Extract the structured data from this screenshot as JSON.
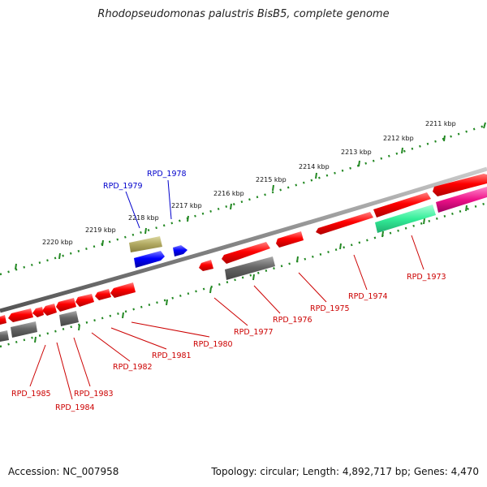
{
  "title": "Rhodopseudomonas palustris BisB5, complete genome",
  "footer": {
    "accession": "Accession: NC_007958",
    "summary": "Topology: circular; Length: 4,892,717 bp; Genes: 4,470"
  },
  "ticks": [
    {
      "label": "2211 kbp"
    },
    {
      "label": "2212 kbp"
    },
    {
      "label": "2213 kbp"
    },
    {
      "label": "2214 kbp"
    },
    {
      "label": "2215 kbp"
    },
    {
      "label": "2216 kbp"
    },
    {
      "label": "2217 kbp"
    },
    {
      "label": "2218 kbp"
    },
    {
      "label": "2219 kbp"
    },
    {
      "label": "2220 kbp"
    }
  ],
  "gene_labels": [
    {
      "name": "RPD_1973",
      "strand": "minus",
      "color": "#cc0000"
    },
    {
      "name": "RPD_1974",
      "strand": "minus",
      "color": "#cc0000"
    },
    {
      "name": "RPD_1975",
      "strand": "minus",
      "color": "#cc0000"
    },
    {
      "name": "RPD_1976",
      "strand": "minus",
      "color": "#cc0000"
    },
    {
      "name": "RPD_1977",
      "strand": "minus",
      "color": "#cc0000"
    },
    {
      "name": "RPD_1978",
      "strand": "plus",
      "color": "#0000cc"
    },
    {
      "name": "RPD_1979",
      "strand": "plus",
      "color": "#0000cc"
    },
    {
      "name": "RPD_1980",
      "strand": "minus",
      "color": "#cc0000"
    },
    {
      "name": "RPD_1981",
      "strand": "minus",
      "color": "#cc0000"
    },
    {
      "name": "RPD_1982",
      "strand": "minus",
      "color": "#cc0000"
    },
    {
      "name": "RPD_1983",
      "strand": "minus",
      "color": "#cc0000"
    },
    {
      "name": "RPD_1984",
      "strand": "minus",
      "color": "#cc0000"
    },
    {
      "name": "RPD_1985",
      "strand": "minus",
      "color": "#cc0000"
    }
  ],
  "colors": {
    "gene_red": "#ff0000",
    "gene_blue": "#0000ff",
    "pseudogene_gray": "#666666",
    "trna_olive": "#b0a860",
    "rrna_green": "#33ee99",
    "misc_magenta": "#ee1188",
    "ruler_green": "#228822",
    "backbone_gray": "#777777"
  }
}
